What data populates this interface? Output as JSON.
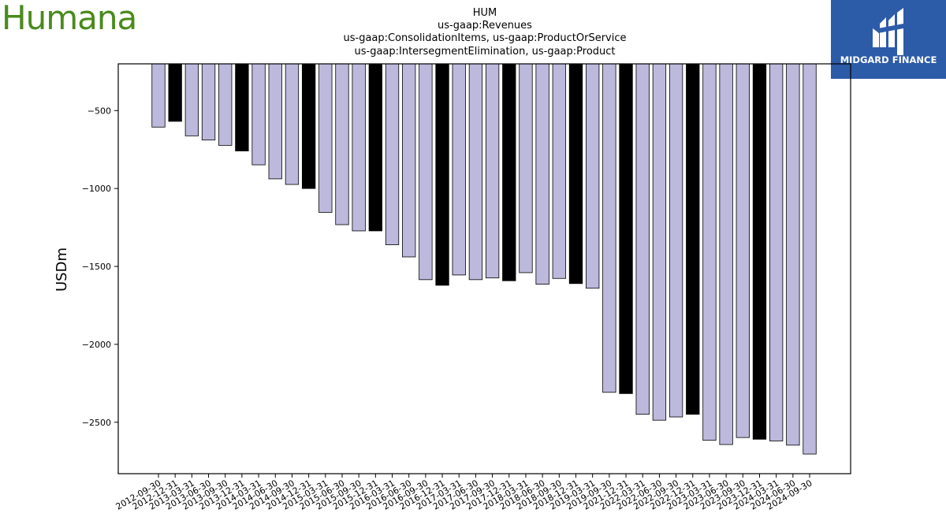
{
  "logos": {
    "left_brand": "Humana",
    "right_brand": "MIDGARD FINANCE"
  },
  "colors": {
    "bar_light": "#bcb9dc",
    "bar_dark": "#000000",
    "humana_green": "#4a8a1c",
    "midgard_blue": "#2c5ba8"
  },
  "chart_data": {
    "type": "bar",
    "title_lines": [
      "HUM",
      "us-gaap:Revenues",
      "us-gaap:ConsolidationItems, us-gaap:ProductOrService",
      "us-gaap:IntersegmentElimination, us-gaap:Product"
    ],
    "xlabel": "",
    "ylabel": "USDm",
    "ylim": [
      -2830,
      -200
    ],
    "yticks": [
      -500,
      -1000,
      -1500,
      -2000,
      -2500
    ],
    "ytick_labels": [
      "−500",
      "−1000",
      "−1500",
      "−2000",
      "−2500"
    ],
    "grid": false,
    "categories": [
      "2012-09-30",
      "2012-12-31",
      "2013-03-31",
      "2013-06-30",
      "2013-09-30",
      "2013-12-31",
      "2014-03-31",
      "2014-06-30",
      "2014-09-30",
      "2014-12-31",
      "2015-03-31",
      "2015-06-30",
      "2015-09-30",
      "2015-12-31",
      "2016-03-31",
      "2016-06-30",
      "2016-09-30",
      "2016-12-31",
      "2017-03-31",
      "2017-06-30",
      "2017-09-30",
      "2017-12-31",
      "2018-03-31",
      "2018-06-30",
      "2018-09-30",
      "2018-12-31",
      "2019-03-31",
      "2019-09-30",
      "2021-12-31",
      "2022-03-31",
      "2022-06-30",
      "2022-09-30",
      "2022-12-31",
      "2023-03-31",
      "2023-06-30",
      "2023-09-30",
      "2023-12-31",
      "2024-03-31",
      "2024-06-30",
      "2024-09-30"
    ],
    "values": [
      -606,
      -569,
      -662,
      -689,
      -723,
      -759,
      -848,
      -938,
      -974,
      -1000,
      -1153,
      -1232,
      -1272,
      -1272,
      -1361,
      -1439,
      -1585,
      -1621,
      -1555,
      -1585,
      -1574,
      -1592,
      -1540,
      -1614,
      -1577,
      -1610,
      -1640,
      -2308,
      -2316,
      -2449,
      -2487,
      -2466,
      -2449,
      -2616,
      -2643,
      -2598,
      -2609,
      -2620,
      -2647,
      -2704
    ],
    "annual_flags": [
      false,
      true,
      false,
      false,
      false,
      true,
      false,
      false,
      false,
      true,
      false,
      false,
      false,
      true,
      false,
      false,
      false,
      true,
      false,
      false,
      false,
      true,
      false,
      false,
      false,
      true,
      false,
      false,
      true,
      false,
      false,
      false,
      true,
      false,
      false,
      false,
      true,
      false,
      false,
      false
    ]
  }
}
